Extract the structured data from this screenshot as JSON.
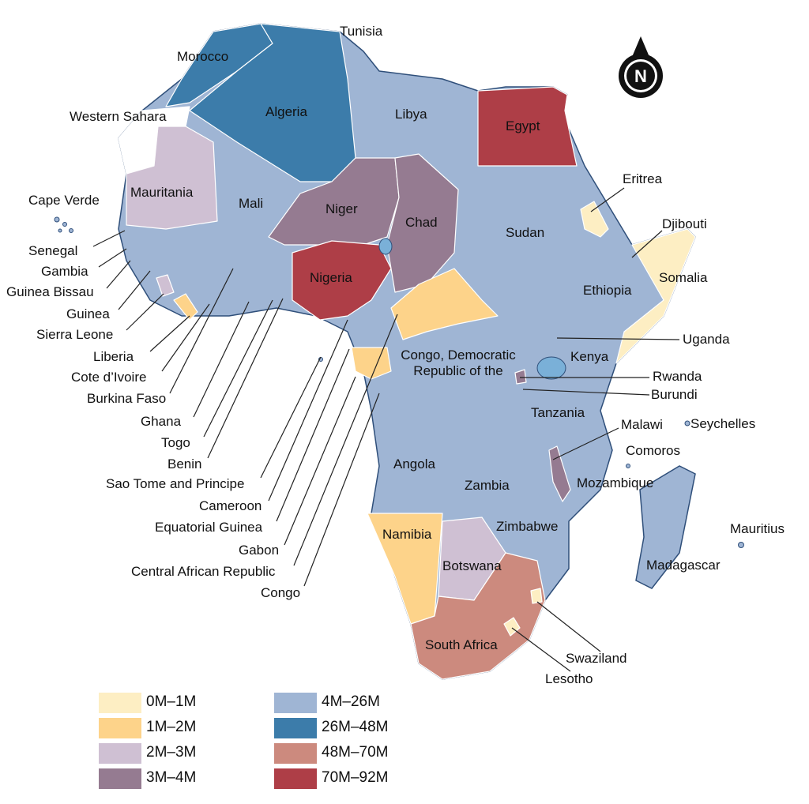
{
  "compass": "N",
  "labels": [
    "Tunisia",
    "Morocco",
    "Algeria",
    "Western Sahara",
    "Libya",
    "Egypt",
    "Eritrea",
    "Djibouti",
    "Cape Verde",
    "Mauritania",
    "Mali",
    "Niger",
    "Chad",
    "Sudan",
    "Somalia",
    "Senegal",
    "Gambia",
    "Guinea Bissau",
    "Guinea",
    "Sierra Leone",
    "Nigeria",
    "Ethiopia",
    "Uganda",
    "Liberia",
    "Kenya",
    "Cote d’Ivoire",
    "Rwanda",
    "Congo, Democratic Republic of the",
    "Burundi",
    "Burkina Faso",
    "Tanzania",
    "Malawi",
    "Seychelles",
    "Ghana",
    "Comoros",
    "Togo",
    "Angola",
    "Benin",
    "Mozambique",
    "Zambia",
    "Sao Tome and Principe",
    "Cameroon",
    "Mauritius",
    "Zimbabwe",
    "Namibia",
    "Equatorial Guinea",
    "Gabon",
    "Botswana",
    "Madagascar",
    "Central African Republic",
    "Congo",
    "Swaziland",
    "South Africa",
    "Lesotho"
  ],
  "legend": [
    {
      "label": "0M–1M",
      "color": "#fdeec3"
    },
    {
      "label": "1M–2M",
      "color": "#fdd38a"
    },
    {
      "label": "2M–3M",
      "color": "#cfc0d3"
    },
    {
      "label": "3M–4M",
      "color": "#957b91"
    },
    {
      "label": "4M–26M",
      "color": "#9fb5d4"
    },
    {
      "label": "26M–48M",
      "color": "#3c7caa"
    },
    {
      "label": "48M–70M",
      "color": "#cc8a7e"
    },
    {
      "label": "70M–92M",
      "color": "#ae3e47"
    }
  ]
}
